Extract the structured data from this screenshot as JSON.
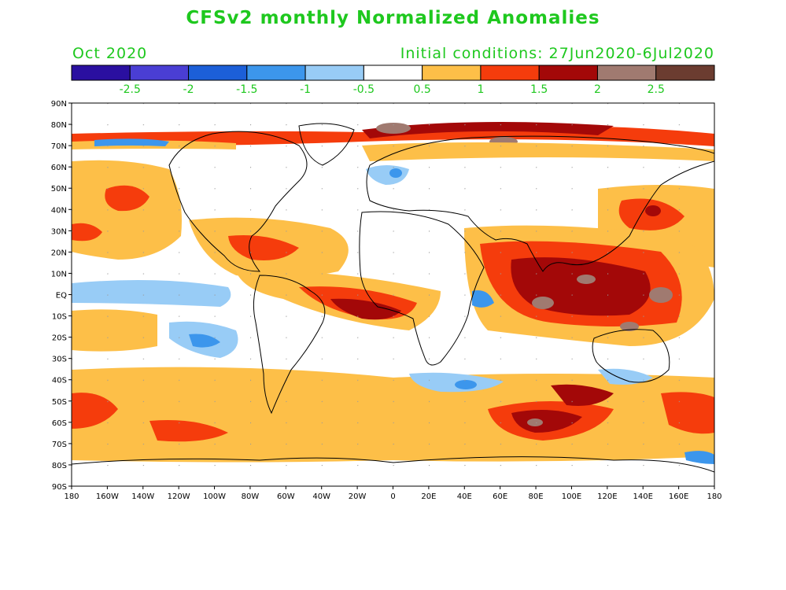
{
  "title": "CFSv2 monthly Normalized Anomalies",
  "valid_month": "Oct 2020",
  "initial_conditions": "Initial conditions: 27Jun2020-6Jul2020",
  "colorbar": {
    "colors": [
      "#2a0fa0",
      "#4a3ed4",
      "#1c5fd8",
      "#3c96ec",
      "#98ccf6",
      "#ffffff",
      "#fdbf48",
      "#f53c0c",
      "#a30808",
      "#a07a70",
      "#6b3c30"
    ],
    "labels": [
      "-2.5",
      "-2",
      "-1.5",
      "-1",
      "-0.5",
      "0.5",
      "1",
      "1.5",
      "2",
      "2.5"
    ]
  },
  "map": {
    "lat_labels": [
      "90N",
      "80N",
      "70N",
      "60N",
      "50N",
      "40N",
      "30N",
      "20N",
      "10N",
      "EQ",
      "10S",
      "20S",
      "30S",
      "40S",
      "50S",
      "60S",
      "70S",
      "80S",
      "90S"
    ],
    "lon_labels": [
      "180",
      "160W",
      "140W",
      "120W",
      "100W",
      "80W",
      "60W",
      "40W",
      "20W",
      "0",
      "20E",
      "40E",
      "60E",
      "80E",
      "100E",
      "120E",
      "140E",
      "160E",
      "180"
    ]
  }
}
